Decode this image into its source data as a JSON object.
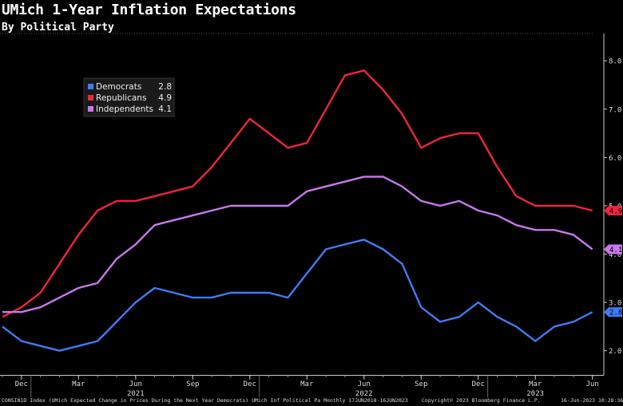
{
  "chart_data": {
    "type": "line",
    "title": "UMich 1-Year Inflation Expectations",
    "subtitle": "By Political Party",
    "x": [
      "2020-11",
      "2020-12",
      "2021-01",
      "2021-02",
      "2021-03",
      "2021-04",
      "2021-05",
      "2021-06",
      "2021-07",
      "2021-08",
      "2021-09",
      "2021-10",
      "2021-11",
      "2021-12",
      "2022-01",
      "2022-02",
      "2022-03",
      "2022-04",
      "2022-05",
      "2022-06",
      "2022-07",
      "2022-08",
      "2022-09",
      "2022-10",
      "2022-11",
      "2022-12",
      "2023-01",
      "2023-02",
      "2023-03",
      "2023-04",
      "2023-05",
      "2023-06"
    ],
    "x_ticks": [
      {
        "label": "Dec",
        "x": "2020-12"
      },
      {
        "label": "Mar",
        "x": "2021-03"
      },
      {
        "label": "Jun",
        "x": "2021-06"
      },
      {
        "label": "Sep",
        "x": "2021-09"
      },
      {
        "label": "Dec",
        "x": "2021-12"
      },
      {
        "label": "Mar",
        "x": "2022-03"
      },
      {
        "label": "Jun",
        "x": "2022-06"
      },
      {
        "label": "Sep",
        "x": "2022-09"
      },
      {
        "label": "Dec",
        "x": "2022-12"
      },
      {
        "label": "Mar",
        "x": "2023-03"
      },
      {
        "label": "Jun",
        "x": "2023-06"
      }
    ],
    "year_labels": [
      {
        "label": "2021",
        "x": "2021-06"
      },
      {
        "label": "2022",
        "x": "2022-06"
      },
      {
        "label": "2023",
        "x": "2023-03"
      }
    ],
    "ylim": [
      1.5,
      8.4
    ],
    "y_ticks": [
      2.0,
      3.0,
      4.0,
      5.0,
      6.0,
      7.0,
      8.0
    ],
    "y_tick_labels": [
      "2.0",
      "3.0",
      "4.0",
      "5.0",
      "6.0",
      "7.0",
      "8.0"
    ],
    "grid": false,
    "legend_position": "top-left",
    "series": [
      {
        "name": "Democrats",
        "legend_value": "2.8",
        "last_label": "2.8",
        "color": "#3f7cf5",
        "values": [
          2.5,
          2.2,
          2.1,
          2.0,
          2.1,
          2.2,
          2.6,
          3.0,
          3.3,
          3.2,
          3.1,
          3.1,
          3.2,
          3.2,
          3.2,
          3.1,
          3.6,
          4.1,
          4.2,
          4.3,
          4.1,
          3.8,
          2.9,
          2.6,
          2.7,
          3.0,
          2.7,
          2.5,
          2.2,
          2.5,
          2.6,
          2.8
        ]
      },
      {
        "name": "Republicans",
        "legend_value": "4.9",
        "last_label": "4.9",
        "color": "#f0243c",
        "values": [
          2.7,
          2.9,
          3.2,
          3.8,
          4.4,
          4.9,
          5.1,
          5.1,
          5.2,
          5.3,
          5.4,
          5.8,
          6.3,
          6.8,
          6.5,
          6.2,
          6.3,
          7.0,
          7.7,
          7.8,
          7.4,
          6.9,
          6.2,
          6.4,
          6.5,
          6.5,
          5.8,
          5.2,
          5.0,
          5.0,
          5.0,
          4.9
        ]
      },
      {
        "name": "Independents",
        "legend_value": "4.1",
        "last_label": "4.1",
        "color": "#c878ec",
        "values": [
          2.8,
          2.8,
          2.9,
          3.1,
          3.3,
          3.4,
          3.9,
          4.2,
          4.6,
          4.7,
          4.8,
          4.9,
          5.0,
          5.0,
          5.0,
          5.0,
          5.3,
          5.4,
          5.5,
          5.6,
          5.6,
          5.4,
          5.1,
          5.0,
          5.1,
          4.9,
          4.8,
          4.6,
          4.5,
          4.5,
          4.4,
          4.1
        ]
      }
    ]
  },
  "footer": {
    "left": "CONSIN1D Index (UMich Expected Change in Prices During the Next Year Democrats) UMich Inf Political Pa  Monthly 17JUN2018-16JUN2023",
    "right": "Copyright© 2023 Bloomberg Finance L.P.",
    "date": "16-Jun-2023 10:28:36"
  }
}
